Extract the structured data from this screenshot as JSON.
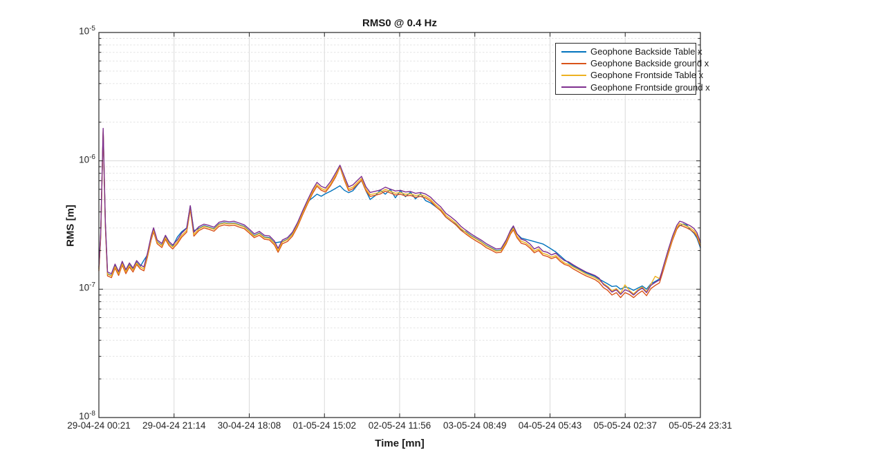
{
  "figure": {
    "background": "#ffffff"
  },
  "styles": {
    "grid_major": "#d9d9d9",
    "grid_minor": "#e3e3e3",
    "axis_color": "#262626",
    "text_color": "#262626"
  },
  "chart_data": {
    "type": "line",
    "title": "RMS0 @ 0.4 Hz",
    "xlabel": "Time [mn]",
    "ylabel": "RMS [m]",
    "y_scale": "log",
    "ylim": [
      1e-08,
      1e-05
    ],
    "grid": "major solid, minor dashed",
    "legend_position": "top-right",
    "x_ticks": [
      "29-04-24 00:21",
      "29-04-24 21:14",
      "30-04-24 18:08",
      "01-05-24 15:02",
      "02-05-24 11:56",
      "03-05-24 08:49",
      "04-05-24 05:43",
      "05-05-24 02:37",
      "05-05-24 23:31"
    ],
    "y_ticks": [
      {
        "base": "10",
        "exp": "-5",
        "value": 1e-05
      },
      {
        "base": "10",
        "exp": "-6",
        "value": 1e-06
      },
      {
        "base": "10",
        "exp": "-7",
        "value": 1e-07
      },
      {
        "base": "10",
        "exp": "-8",
        "value": 1e-08
      }
    ],
    "x_unit": "hours after 29-04-24 00:21",
    "x_range_hours": [
      0,
      167.17
    ],
    "value_scale": 1e-07,
    "value_unit": "m (values below are in units of 1e-7 m)",
    "x_hours": [
      0,
      0.5,
      1.2,
      1.8,
      2.4,
      3.5,
      4.5,
      5.5,
      6.5,
      7.5,
      8.5,
      9.5,
      10.5,
      11.5,
      12.5,
      13.5,
      14.5,
      15.2,
      16.2,
      17.5,
      18.5,
      19.5,
      20.5,
      21.8,
      23,
      24.4,
      25.4,
      26.4,
      27.8,
      29.2,
      30.6,
      32,
      33.4,
      34.8,
      36.2,
      37.6,
      39,
      40.4,
      41.8,
      43.2,
      44.6,
      46,
      47.4,
      48.8,
      49.8,
      51,
      52.4,
      53.8,
      55.2,
      56.6,
      58,
      59.4,
      60.6,
      61.8,
      63,
      64.4,
      65.8,
      67,
      68.2,
      69.4,
      70.6,
      72,
      73,
      74.2,
      75.4,
      76.8,
      78.2,
      79.6,
      81,
      82.4,
      83.8,
      85.2,
      86.6,
      88,
      89.4,
      90.8,
      92.2,
      93.6,
      95,
      96.4,
      97.8,
      99.2,
      100.6,
      102,
      103.4,
      104.8,
      106.2,
      107.6,
      109,
      110.4,
      111.8,
      113.2,
      114.4,
      115.2,
      116.2,
      117.4,
      118.6,
      119.8,
      121,
      122.2,
      123.4,
      124.6,
      125.8,
      127,
      128.2,
      129.4,
      130.6,
      131.8,
      133,
      134.2,
      135.4,
      136.6,
      137.8,
      139,
      140.2,
      141.4,
      142.6,
      143.8,
      145,
      146.2,
      147.4,
      148.6,
      149.8,
      151,
      152.2,
      153.4,
      154.6,
      155.8,
      157,
      158.2,
      159.4,
      160.6,
      161.4,
      162.4,
      163.4,
      164.4,
      165.4,
      166.2,
      167.17
    ],
    "series": [
      {
        "name": "Geophone Backside Table x",
        "color": "#0072BD",
        "values": [
          1.45,
          2.6,
          16.8,
          3.2,
          1.32,
          1.28,
          1.52,
          1.33,
          1.6,
          1.38,
          1.55,
          1.42,
          1.62,
          1.5,
          1.68,
          1.85,
          2.5,
          2.92,
          2.35,
          2.2,
          2.55,
          2.28,
          2.15,
          2.55,
          2.8,
          3,
          4.45,
          2.85,
          2.98,
          3.12,
          3.05,
          2.95,
          3.22,
          3.3,
          3.25,
          3.28,
          3.18,
          3.08,
          2.85,
          2.62,
          2.74,
          2.55,
          2.52,
          2.3,
          2.32,
          2.35,
          2.45,
          2.7,
          3.2,
          3.95,
          4.8,
          5.15,
          5.5,
          5.3,
          5.55,
          5.8,
          6.1,
          6.4,
          5.9,
          5.65,
          5.85,
          6.55,
          7.05,
          5.85,
          5,
          5.35,
          5.9,
          5.5,
          6,
          5.15,
          5.85,
          5.25,
          5.7,
          5.05,
          5.55,
          4.9,
          4.7,
          4.4,
          4.1,
          3.65,
          3.4,
          3.2,
          2.9,
          2.8,
          2.62,
          2.48,
          2.35,
          2.2,
          2.1,
          2,
          2.02,
          2.35,
          2.85,
          3.05,
          2.7,
          2.5,
          2.45,
          2.4,
          2.35,
          2.3,
          2.25,
          2.15,
          2.05,
          1.95,
          1.82,
          1.7,
          1.6,
          1.52,
          1.46,
          1.4,
          1.34,
          1.3,
          1.26,
          1.2,
          1.15,
          1.1,
          1.05,
          1.06,
          1,
          1.04,
          1.02,
          0.98,
          1.02,
          1.06,
          1,
          1.1,
          1.15,
          1.2,
          1.5,
          1.95,
          2.5,
          2.95,
          3.12,
          3.22,
          3.15,
          2.9,
          2.72,
          2.5,
          2.1
        ]
      },
      {
        "name": "Geophone Backside ground x",
        "color": "#D95319",
        "values": [
          1.39,
          2.5,
          17.2,
          3.07,
          1.27,
          1.23,
          1.46,
          1.28,
          1.54,
          1.32,
          1.49,
          1.36,
          1.56,
          1.44,
          1.39,
          1.78,
          2.4,
          2.8,
          2.26,
          2.11,
          2.45,
          2.19,
          2.06,
          2.26,
          2.54,
          2.78,
          4.18,
          2.59,
          2.86,
          3,
          2.93,
          2.83,
          3.09,
          3.17,
          3.12,
          3.15,
          3.05,
          2.96,
          2.74,
          2.52,
          2.63,
          2.45,
          2.42,
          2.21,
          1.94,
          2.26,
          2.35,
          2.59,
          3.07,
          3.79,
          4.61,
          5.57,
          6.34,
          5.9,
          5.71,
          6.43,
          7.49,
          8.95,
          7.1,
          5.86,
          6.05,
          6.62,
          7.06,
          5.86,
          5.28,
          5.4,
          5.52,
          5.81,
          5.62,
          5.42,
          5.49,
          5.33,
          5.38,
          5.2,
          5.28,
          5.14,
          4.85,
          4.42,
          4.08,
          3.65,
          3.41,
          3.17,
          2.88,
          2.69,
          2.52,
          2.38,
          2.26,
          2.11,
          2.02,
          1.92,
          1.94,
          2.26,
          2.69,
          2.9,
          2.52,
          2.28,
          2.23,
          2.09,
          1.92,
          2,
          1.84,
          1.8,
          1.73,
          1.78,
          1.65,
          1.56,
          1.52,
          1.44,
          1.38,
          1.32,
          1.27,
          1.23,
          1.19,
          1.13,
          1.03,
          0.98,
          0.9,
          0.94,
          0.86,
          0.94,
          0.91,
          0.86,
          0.92,
          0.97,
          0.89,
          1.01,
          1.07,
          1.12,
          1.44,
          1.87,
          2.4,
          2.93,
          3.15,
          3.09,
          3,
          2.9,
          2.76,
          2.57,
          2.16
        ]
      },
      {
        "name": "Geophone Frontside Table x",
        "color": "#EDB120",
        "values": [
          1.44,
          2.57,
          17.4,
          3.17,
          1.31,
          1.27,
          1.5,
          1.32,
          1.58,
          1.37,
          1.53,
          1.41,
          1.6,
          1.49,
          1.44,
          1.83,
          2.48,
          2.89,
          2.33,
          2.18,
          2.52,
          2.26,
          2.13,
          2.33,
          2.62,
          2.87,
          4.31,
          2.67,
          2.95,
          3.09,
          3.02,
          2.92,
          3.19,
          3.27,
          3.22,
          3.25,
          3.15,
          3.05,
          2.82,
          2.59,
          2.71,
          2.52,
          2.49,
          2.28,
          2,
          2.33,
          2.43,
          2.67,
          3.17,
          3.91,
          4.75,
          5.74,
          6.53,
          6.09,
          5.89,
          6.63,
          7.72,
          9,
          7.33,
          6.04,
          6.24,
          6.83,
          7.28,
          6.04,
          5.45,
          5.56,
          5.69,
          5.99,
          5.79,
          5.59,
          5.66,
          5.49,
          5.54,
          5.37,
          5.45,
          5.3,
          5,
          4.55,
          4.21,
          3.76,
          3.51,
          3.27,
          2.97,
          2.77,
          2.59,
          2.46,
          2.33,
          2.18,
          2.08,
          1.98,
          2,
          2.33,
          2.77,
          2.99,
          2.59,
          2.36,
          2.3,
          2.16,
          1.98,
          2.06,
          1.9,
          1.86,
          1.78,
          1.83,
          1.7,
          1.6,
          1.56,
          1.49,
          1.43,
          1.37,
          1.31,
          1.27,
          1.23,
          1.17,
          1.11,
          1.05,
          0.97,
          1.01,
          0.93,
          1.08,
          0.98,
          0.92,
          0.99,
          1.04,
          0.96,
          1.09,
          1.26,
          1.21,
          1.49,
          1.93,
          2.48,
          3.02,
          3.25,
          3.19,
          3.09,
          2.99,
          2.85,
          2.65,
          2.23
        ]
      },
      {
        "name": "Geophone Frontside ground x",
        "color": "#7E2F8E",
        "values": [
          1.49,
          2.68,
          17.9,
          3.3,
          1.36,
          1.32,
          1.57,
          1.37,
          1.65,
          1.42,
          1.6,
          1.46,
          1.67,
          1.55,
          1.49,
          1.91,
          2.58,
          3.01,
          2.42,
          2.27,
          2.63,
          2.35,
          2.21,
          2.42,
          2.73,
          2.99,
          4.48,
          2.78,
          3.07,
          3.21,
          3.14,
          3.04,
          3.32,
          3.4,
          3.35,
          3.38,
          3.28,
          3.17,
          2.94,
          2.7,
          2.82,
          2.63,
          2.6,
          2.37,
          2.08,
          2.42,
          2.52,
          2.78,
          3.3,
          4.07,
          4.94,
          5.97,
          6.8,
          6.33,
          6.13,
          6.9,
          8.03,
          9.25,
          7.62,
          6.28,
          6.49,
          7.11,
          7.57,
          6.28,
          5.67,
          5.79,
          5.92,
          6.23,
          6.03,
          5.82,
          5.89,
          5.72,
          5.77,
          5.58,
          5.67,
          5.51,
          5.2,
          4.74,
          4.38,
          3.91,
          3.66,
          3.4,
          3.09,
          2.88,
          2.7,
          2.55,
          2.42,
          2.27,
          2.16,
          2.06,
          2.08,
          2.42,
          2.88,
          3.11,
          2.7,
          2.45,
          2.39,
          2.25,
          2.06,
          2.14,
          1.98,
          1.94,
          1.85,
          1.91,
          1.77,
          1.67,
          1.63,
          1.55,
          1.48,
          1.42,
          1.36,
          1.32,
          1.28,
          1.22,
          1.09,
          1.03,
          0.95,
          0.99,
          0.91,
          0.99,
          0.96,
          0.9,
          0.97,
          1.02,
          0.94,
          1.07,
          1.13,
          1.18,
          1.55,
          2.01,
          2.58,
          3.14,
          3.38,
          3.32,
          3.21,
          3.11,
          2.97,
          2.76,
          2.32
        ]
      }
    ]
  }
}
